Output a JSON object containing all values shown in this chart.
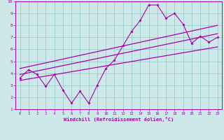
{
  "xlabel": "Windchill (Refroidissement éolien,°C)",
  "xlim": [
    -0.5,
    23.5
  ],
  "ylim": [
    1,
    10
  ],
  "yticks": [
    1,
    2,
    3,
    4,
    5,
    6,
    7,
    8,
    9,
    10
  ],
  "xticks": [
    0,
    1,
    2,
    3,
    4,
    5,
    6,
    7,
    8,
    9,
    10,
    11,
    12,
    13,
    14,
    15,
    16,
    17,
    18,
    19,
    20,
    21,
    22,
    23
  ],
  "bg_color": "#cce8e8",
  "line_color": "#aa00aa",
  "grid_color": "#99cccc",
  "scatter_x": [
    0,
    1,
    2,
    3,
    4,
    5,
    6,
    7,
    8,
    9,
    10,
    11,
    12,
    13,
    14,
    15,
    16,
    17,
    18,
    19,
    20,
    21,
    22,
    23
  ],
  "scatter_y": [
    3.6,
    4.3,
    3.9,
    2.9,
    3.9,
    2.6,
    1.5,
    2.5,
    1.5,
    3.0,
    4.4,
    5.1,
    6.3,
    7.5,
    8.4,
    9.7,
    9.7,
    8.6,
    9.0,
    8.1,
    6.5,
    7.1,
    6.6,
    7.0
  ],
  "reg_line1_x": [
    0,
    23
  ],
  "reg_line1_y": [
    3.4,
    6.2
  ],
  "reg_line2_x": [
    0,
    23
  ],
  "reg_line2_y": [
    3.9,
    7.3
  ],
  "reg_line3_x": [
    0,
    23
  ],
  "reg_line3_y": [
    4.4,
    8.0
  ]
}
